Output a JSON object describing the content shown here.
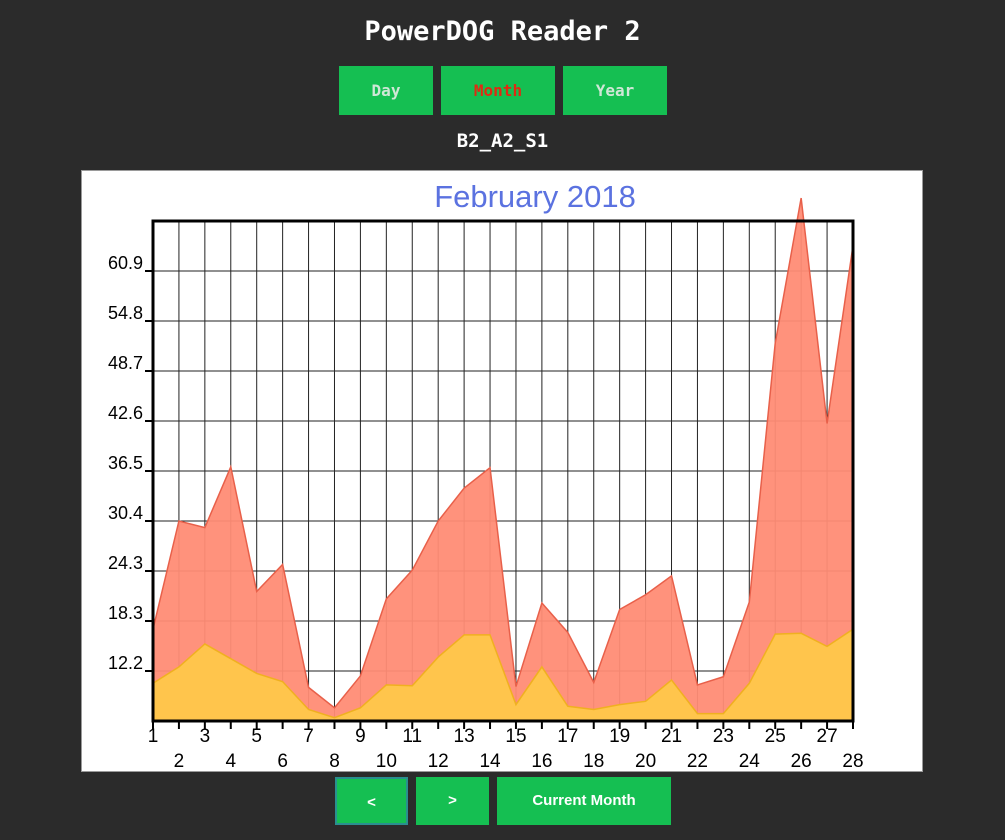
{
  "app": {
    "title": "PowerDOG Reader 2"
  },
  "tabs": [
    {
      "label": "Day",
      "active": false
    },
    {
      "label": "Month",
      "active": true
    },
    {
      "label": "Year",
      "active": false
    }
  ],
  "device": {
    "name": "B2_A2_S1"
  },
  "nav": {
    "prev_label": "<",
    "next_label": ">",
    "current_label": "Current Month"
  },
  "colors": {
    "title": "#5b72e0",
    "upper_fill": "#ff8c75",
    "upper_stroke": "#e8604a",
    "lower_fill": "#ffc84a",
    "lower_stroke": "#f0b020",
    "active_tab_text": "#e02a12",
    "button": "#15bf52"
  },
  "chart_data": {
    "type": "area",
    "title": "February 2018",
    "stacked": true,
    "grid": true,
    "categories": [
      "1",
      "2",
      "3",
      "4",
      "5",
      "6",
      "7",
      "8",
      "9",
      "10",
      "11",
      "12",
      "13",
      "14",
      "15",
      "16",
      "17",
      "18",
      "19",
      "20",
      "21",
      "22",
      "23",
      "24",
      "25",
      "26",
      "27",
      "28"
    ],
    "y_ticks": [
      "12.2",
      "18.3",
      "24.3",
      "30.4",
      "36.5",
      "42.6",
      "48.7",
      "54.8",
      "60.9"
    ],
    "ylim": [
      0,
      61
    ],
    "series": [
      {
        "values": [
          4.6,
          6.6,
          9.4,
          7.6,
          5.8,
          4.8,
          1.4,
          0.4,
          1.6,
          4.4,
          4.3,
          7.8,
          10.5,
          10.5,
          2.0,
          6.6,
          1.8,
          1.4,
          2.0,
          2.4,
          5.0,
          0.9,
          0.9,
          4.6,
          10.6,
          10.7,
          9.1,
          11.2
        ]
      },
      {
        "values": [
          6.6,
          17.8,
          14.2,
          23.4,
          10.0,
          14.3,
          2.7,
          1.2,
          3.9,
          10.5,
          14.1,
          16.6,
          17.9,
          20.4,
          2.2,
          7.8,
          9.0,
          3.3,
          11.6,
          13.0,
          12.7,
          3.5,
          4.5,
          9.9,
          35.5,
          53.1,
          27.2,
          46.8
        ]
      }
    ],
    "total": [
      11.2,
      24.4,
      23.6,
      31.0,
      15.8,
      19.1,
      4.1,
      1.6,
      5.5,
      14.9,
      18.4,
      24.4,
      28.4,
      30.9,
      4.2,
      14.4,
      10.8,
      4.7,
      13.6,
      15.4,
      17.7,
      4.4,
      5.4,
      14.5,
      46.1,
      63.8,
      36.3,
      58.0
    ]
  }
}
